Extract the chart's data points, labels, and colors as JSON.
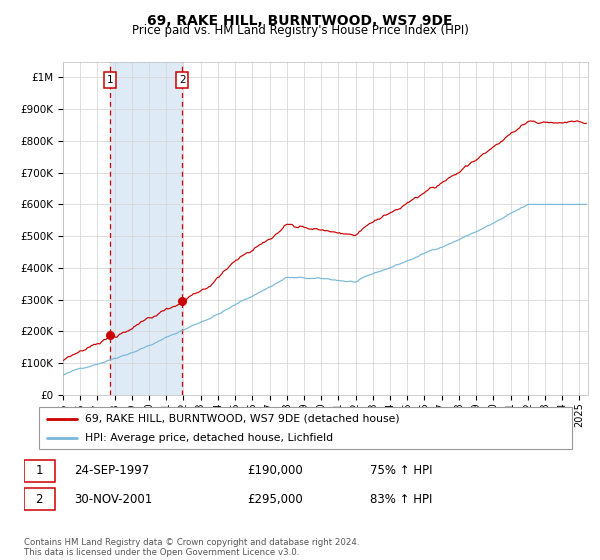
{
  "title": "69, RAKE HILL, BURNTWOOD, WS7 9DE",
  "subtitle": "Price paid vs. HM Land Registry's House Price Index (HPI)",
  "title_fontsize": 10,
  "subtitle_fontsize": 8.5,
  "ylim": [
    0,
    1050000
  ],
  "xlim_start": 1995.0,
  "xlim_end": 2025.5,
  "yticks": [
    0,
    100000,
    200000,
    300000,
    400000,
    500000,
    600000,
    700000,
    800000,
    900000,
    1000000
  ],
  "ytick_labels": [
    "£0",
    "£100K",
    "£200K",
    "£300K",
    "£400K",
    "£500K",
    "£600K",
    "£700K",
    "£800K",
    "£900K",
    "£1M"
  ],
  "xtick_years": [
    1995,
    1996,
    1997,
    1998,
    1999,
    2000,
    2001,
    2002,
    2003,
    2004,
    2005,
    2006,
    2007,
    2008,
    2009,
    2010,
    2011,
    2012,
    2013,
    2014,
    2015,
    2016,
    2017,
    2018,
    2019,
    2020,
    2021,
    2022,
    2023,
    2024,
    2025
  ],
  "hpi_color": "#7ab8d9",
  "property_color": "#cc0000",
  "grid_color": "#d8d8d8",
  "bg_color": "#ffffff",
  "plot_bg_color": "#ffffff",
  "sale1_x": 1997.73,
  "sale1_y": 190000,
  "sale2_x": 2001.92,
  "sale2_y": 295000,
  "sale1_label": "1",
  "sale2_label": "2",
  "vline_color": "#cc0000",
  "shade_color": "#deeaf5",
  "legend_entry1": "69, RAKE HILL, BURNTWOOD, WS7 9DE (detached house)",
  "legend_entry2": "HPI: Average price, detached house, Lichfield",
  "table_row1": [
    "1",
    "24-SEP-1997",
    "£190,000",
    "75% ↑ HPI"
  ],
  "table_row2": [
    "2",
    "30-NOV-2001",
    "£295,000",
    "83% ↑ HPI"
  ],
  "footnote": "Contains HM Land Registry data © Crown copyright and database right 2024.\nThis data is licensed under the Open Government Licence v3.0."
}
